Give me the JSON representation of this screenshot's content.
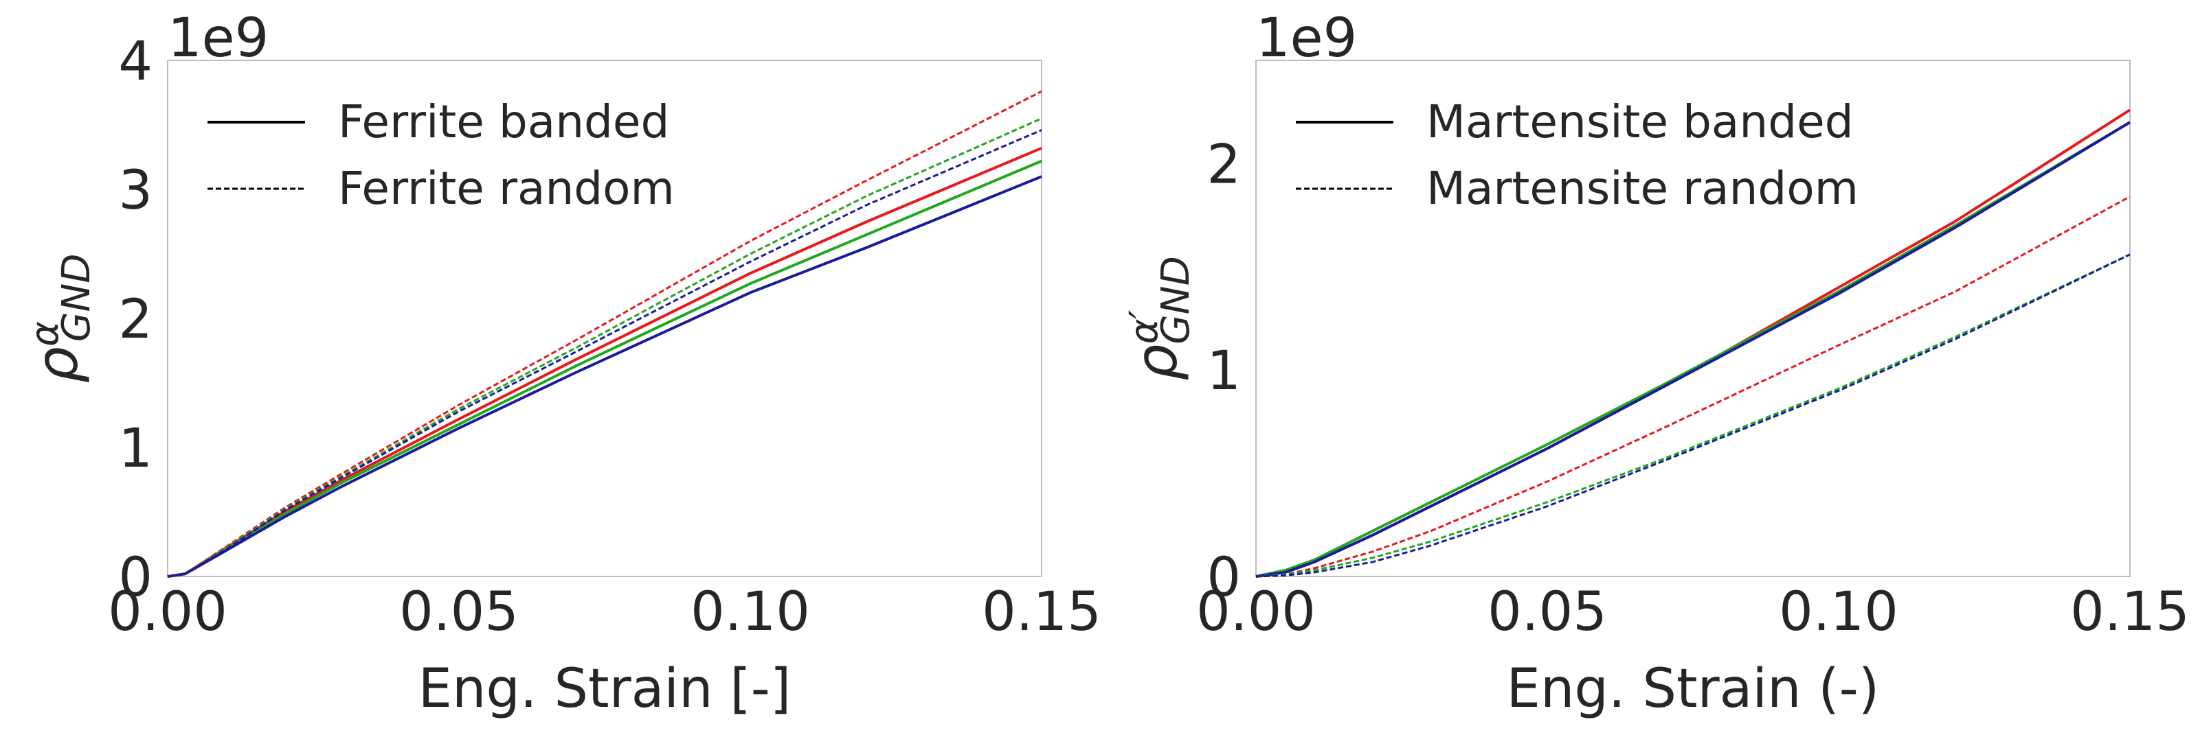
{
  "chart_data": [
    {
      "type": "line",
      "id": "left",
      "xlabel": "Eng. Strain [-]",
      "ylabel_symbol": "ρ",
      "ylabel_superscript": "α",
      "ylabel_subscript": "GND",
      "y_offset_label": "1e9",
      "xlim": [
        0,
        0.15
      ],
      "ylim": [
        0,
        4
      ],
      "xticks": [
        0,
        0.05,
        0.1,
        0.15
      ],
      "xtick_labels": [
        "0.00",
        "0.05",
        "0.10",
        "0.15"
      ],
      "yticks": [
        0,
        1,
        2,
        3,
        4
      ],
      "ytick_labels": [
        "0",
        "1",
        "2",
        "3",
        "4"
      ],
      "legend": [
        {
          "label": "Ferrite banded",
          "style": "solid"
        },
        {
          "label": "Ferrite random",
          "style": "dashed"
        }
      ],
      "series": [
        {
          "name": "banded red",
          "color": "#e8191c",
          "style": "solid",
          "x": [
            0,
            0.003,
            0.01,
            0.02,
            0.03,
            0.05,
            0.07,
            0.1,
            0.12,
            0.15
          ],
          "y": [
            0,
            0.02,
            0.22,
            0.5,
            0.75,
            1.22,
            1.68,
            2.35,
            2.75,
            3.32
          ]
        },
        {
          "name": "banded green",
          "color": "#1fa81f",
          "style": "solid",
          "x": [
            0,
            0.003,
            0.01,
            0.02,
            0.03,
            0.05,
            0.07,
            0.1,
            0.12,
            0.15
          ],
          "y": [
            0,
            0.02,
            0.21,
            0.48,
            0.73,
            1.18,
            1.63,
            2.27,
            2.65,
            3.22
          ]
        },
        {
          "name": "banded blue",
          "color": "#1a1a9e",
          "style": "solid",
          "x": [
            0,
            0.003,
            0.01,
            0.02,
            0.03,
            0.05,
            0.07,
            0.1,
            0.12,
            0.15
          ],
          "y": [
            0,
            0.02,
            0.2,
            0.46,
            0.7,
            1.15,
            1.58,
            2.2,
            2.55,
            3.1
          ]
        },
        {
          "name": "random red",
          "color": "#e8191c",
          "style": "dashed",
          "x": [
            0,
            0.003,
            0.01,
            0.02,
            0.03,
            0.05,
            0.07,
            0.1,
            0.12,
            0.15
          ],
          "y": [
            0,
            0.02,
            0.23,
            0.53,
            0.8,
            1.33,
            1.83,
            2.6,
            3.07,
            3.76
          ]
        },
        {
          "name": "random green",
          "color": "#1fa81f",
          "style": "dashed",
          "x": [
            0,
            0.003,
            0.01,
            0.02,
            0.03,
            0.05,
            0.07,
            0.1,
            0.12,
            0.15
          ],
          "y": [
            0,
            0.02,
            0.22,
            0.52,
            0.78,
            1.3,
            1.77,
            2.5,
            2.95,
            3.55
          ]
        },
        {
          "name": "random blue",
          "color": "#1a1a9e",
          "style": "dashed",
          "x": [
            0,
            0.003,
            0.01,
            0.02,
            0.03,
            0.05,
            0.07,
            0.1,
            0.12,
            0.15
          ],
          "y": [
            0,
            0.02,
            0.21,
            0.51,
            0.77,
            1.28,
            1.74,
            2.44,
            2.88,
            3.46
          ]
        }
      ]
    },
    {
      "type": "line",
      "id": "right",
      "xlabel": "Eng. Strain (-)",
      "ylabel_symbol": "ρ",
      "ylabel_superscript": "α′",
      "ylabel_subscript": "GND",
      "y_offset_label": "1e9",
      "xlim": [
        0,
        0.15
      ],
      "ylim": [
        0,
        2.5
      ],
      "xticks": [
        0,
        0.05,
        0.1,
        0.15
      ],
      "xtick_labels": [
        "0.00",
        "0.05",
        "0.10",
        "0.15"
      ],
      "yticks": [
        0,
        1,
        2
      ],
      "ytick_labels": [
        "0",
        "1",
        "2"
      ],
      "legend": [
        {
          "label": "Martensite banded",
          "style": "solid"
        },
        {
          "label": "Martensite random",
          "style": "dashed"
        }
      ],
      "series": [
        {
          "name": "banded red",
          "color": "#e8191c",
          "style": "solid",
          "x": [
            0,
            0.005,
            0.01,
            0.02,
            0.03,
            0.05,
            0.07,
            0.1,
            0.12,
            0.15
          ],
          "y": [
            0,
            0.02,
            0.07,
            0.2,
            0.34,
            0.62,
            0.92,
            1.4,
            1.72,
            2.26
          ]
        },
        {
          "name": "banded green",
          "color": "#1fa81f",
          "style": "solid",
          "x": [
            0,
            0.005,
            0.01,
            0.02,
            0.03,
            0.05,
            0.07,
            0.1,
            0.12,
            0.15
          ],
          "y": [
            0,
            0.03,
            0.08,
            0.22,
            0.36,
            0.64,
            0.93,
            1.38,
            1.7,
            2.2
          ]
        },
        {
          "name": "banded blue",
          "color": "#1a1a9e",
          "style": "solid",
          "x": [
            0,
            0.005,
            0.01,
            0.02,
            0.03,
            0.05,
            0.07,
            0.1,
            0.12,
            0.15
          ],
          "y": [
            0,
            0.02,
            0.07,
            0.2,
            0.34,
            0.62,
            0.92,
            1.37,
            1.69,
            2.2
          ]
        },
        {
          "name": "random red",
          "color": "#e8191c",
          "style": "dashed",
          "x": [
            0,
            0.005,
            0.01,
            0.02,
            0.03,
            0.05,
            0.07,
            0.1,
            0.12,
            0.15
          ],
          "y": [
            0,
            0.01,
            0.04,
            0.12,
            0.22,
            0.46,
            0.72,
            1.12,
            1.38,
            1.84
          ]
        },
        {
          "name": "random green",
          "color": "#1fa81f",
          "style": "dashed",
          "x": [
            0,
            0.005,
            0.01,
            0.02,
            0.03,
            0.05,
            0.07,
            0.1,
            0.12,
            0.15
          ],
          "y": [
            0,
            0.01,
            0.03,
            0.09,
            0.17,
            0.36,
            0.57,
            0.91,
            1.16,
            1.56
          ]
        },
        {
          "name": "random blue",
          "color": "#1a1a9e",
          "style": "dashed",
          "x": [
            0,
            0.005,
            0.01,
            0.02,
            0.03,
            0.05,
            0.07,
            0.1,
            0.12,
            0.15
          ],
          "y": [
            0,
            0.005,
            0.02,
            0.07,
            0.15,
            0.34,
            0.56,
            0.9,
            1.15,
            1.56
          ]
        }
      ]
    }
  ]
}
